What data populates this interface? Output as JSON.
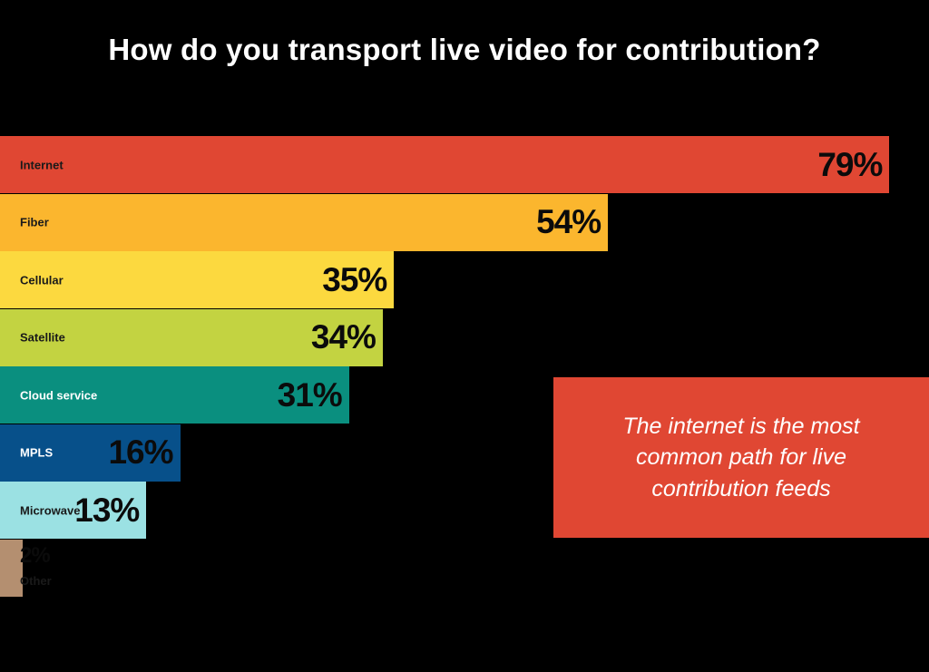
{
  "chart_data": {
    "type": "bar",
    "orientation": "horizontal",
    "title": "How do you transport live video for contribution?",
    "categories": [
      "Internet",
      "Fiber",
      "Cellular",
      "Satellite",
      "Cloud service",
      "MPLS",
      "Microwave",
      "Other"
    ],
    "values": [
      79,
      54,
      35,
      34,
      31,
      16,
      13,
      2
    ],
    "value_labels": [
      "79%",
      "54%",
      "35%",
      "34%",
      "31%",
      "16%",
      "13%",
      "2%"
    ],
    "colors": [
      "#e04733",
      "#fbb62e",
      "#fcd93f",
      "#c3d341",
      "#0a8f7f",
      "#07508a",
      "#9be1e3",
      "#b48f70"
    ],
    "label_colors": [
      "#1a1a1a",
      "#1a1a1a",
      "#1a1a1a",
      "#1a1a1a",
      "#ffffff",
      "#ffffff",
      "#1a1a1a",
      "#1a1a1a"
    ],
    "xlim": [
      0,
      100
    ],
    "legend": "none",
    "grid": false
  },
  "callout": {
    "text": "The internet is the most common path for live contribution feeds",
    "color": "#e04733"
  }
}
